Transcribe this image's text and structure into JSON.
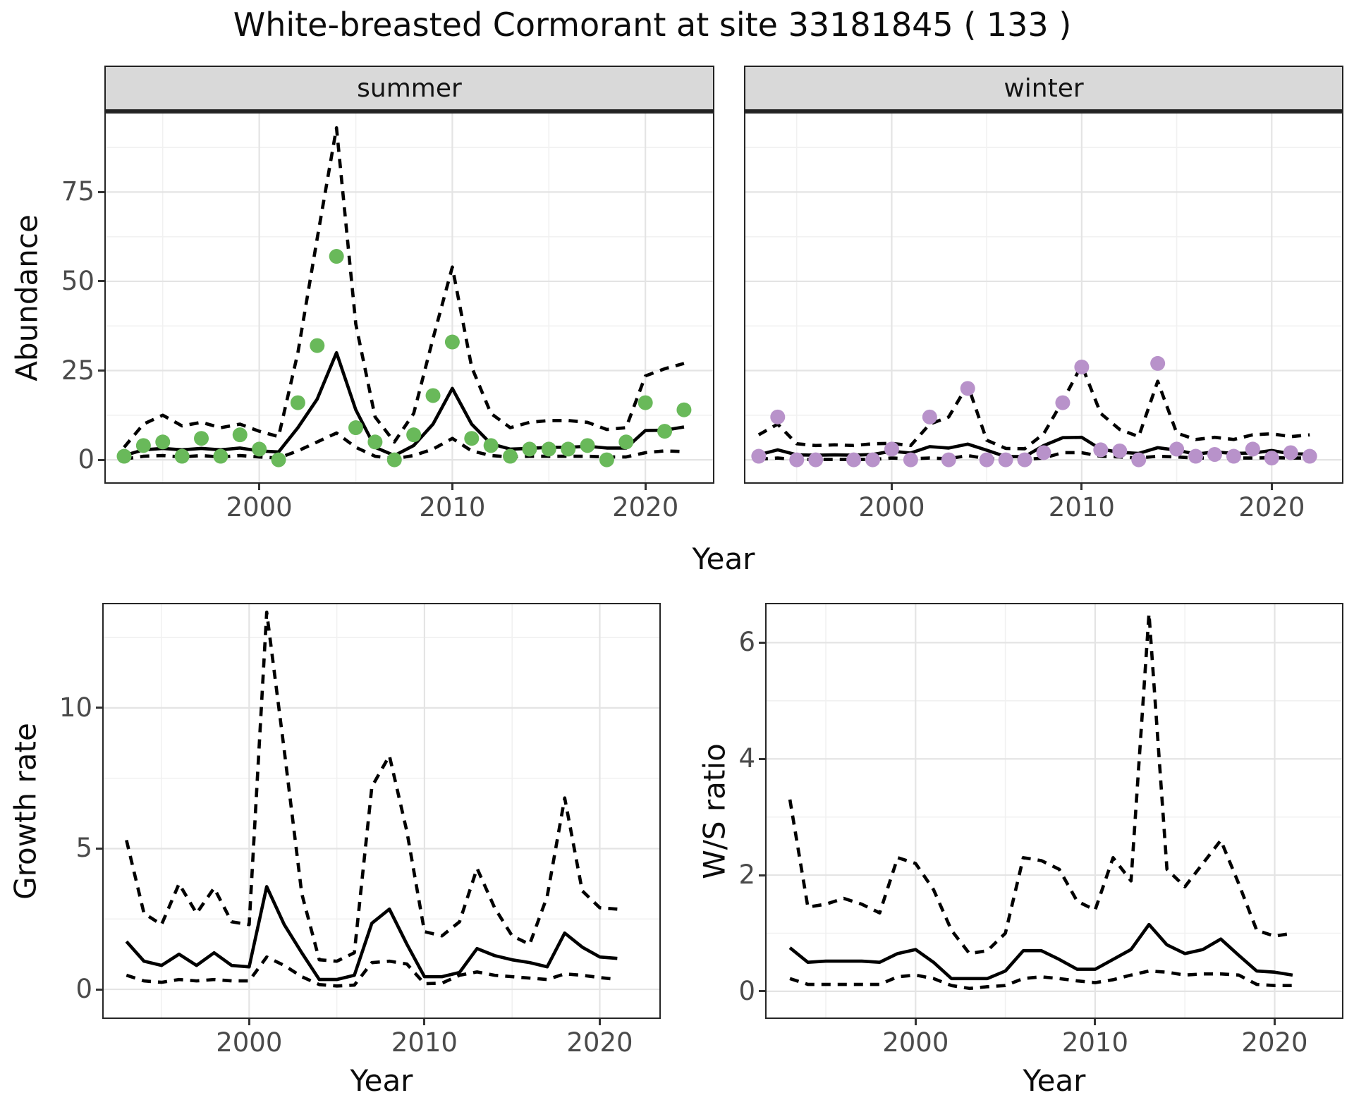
{
  "title": "White-breasted Cormorant at site 33181845 ( 133 )",
  "facets": [
    "summer",
    "winter"
  ],
  "labels": {
    "y_abundance": "Abundance",
    "y_growth": "Growth rate",
    "y_ws": "W/S ratio",
    "x_year_top": "Year",
    "x_year_growth": "Year",
    "x_year_ws": "Year"
  },
  "colors": {
    "summer_point": "#69b95a",
    "winter_point": "#b892ca",
    "line": "#000000",
    "grid_major": "#e4e4e4",
    "grid_minor": "#f1f1f1",
    "strip_bg": "#d9d9d9",
    "panel_border": "#262626",
    "tick_text": "#4a4a4a"
  },
  "chart_data": [
    {
      "id": "summer",
      "type": "line",
      "facet": "summer",
      "ylabel": "Abundance",
      "xlabel": "Year",
      "x": [
        1993,
        1994,
        1995,
        1996,
        1997,
        1998,
        1999,
        2000,
        2001,
        2002,
        2003,
        2004,
        2005,
        2006,
        2007,
        2008,
        2009,
        2010,
        2011,
        2012,
        2013,
        2014,
        2015,
        2016,
        2017,
        2018,
        2019,
        2020,
        2021,
        2022
      ],
      "obs": [
        1,
        4,
        5,
        1,
        6,
        1,
        7,
        3,
        0,
        16,
        32,
        57,
        9,
        5,
        0,
        7,
        18,
        33,
        6,
        4,
        1,
        3,
        3,
        3,
        4,
        0,
        5,
        16,
        8,
        14
      ],
      "mean": [
        1.2,
        2.8,
        3.2,
        2.8,
        3.2,
        2.8,
        3.3,
        2.5,
        2.2,
        9,
        17,
        30,
        14,
        3.5,
        1.2,
        4,
        10,
        20,
        10,
        4.5,
        3,
        3.2,
        3.5,
        3.5,
        3.8,
        3.3,
        3.3,
        8.2,
        8.3,
        9.2
      ],
      "upper": [
        3.5,
        10,
        12.5,
        9.5,
        10.5,
        9,
        10,
        8,
        6.5,
        30,
        62,
        93,
        38,
        12,
        5,
        13,
        34,
        54,
        26,
        13,
        9,
        10.5,
        11,
        11,
        10.5,
        8.5,
        9,
        23.5,
        25.5,
        27
      ],
      "lower": [
        0.2,
        1,
        1.2,
        0.8,
        1.2,
        0.8,
        1.2,
        0.8,
        0.5,
        2.5,
        5,
        7.5,
        3.5,
        1,
        0.3,
        1.2,
        3,
        6,
        2.5,
        1.2,
        0.8,
        1,
        1,
        1,
        1,
        0.8,
        0.8,
        2,
        2.5,
        2.3
      ],
      "xticks": [
        2000,
        2010,
        2020
      ],
      "xminor": [
        1995,
        2005,
        2015
      ],
      "yticks": [
        0,
        25,
        50,
        75
      ],
      "yminor": [
        12.5,
        37.5,
        62.5,
        87.5
      ],
      "xlim": [
        1992.05,
        2023.5
      ],
      "ylim": [
        -6.3,
        97
      ],
      "point_color": "#69b95a",
      "show_yticks": true
    },
    {
      "id": "winter",
      "type": "line",
      "facet": "winter",
      "ylabel": "Abundance",
      "xlabel": "Year",
      "x": [
        1993,
        1994,
        1995,
        1996,
        1997,
        1998,
        1999,
        2000,
        2001,
        2002,
        2003,
        2004,
        2005,
        2006,
        2007,
        2008,
        2009,
        2010,
        2011,
        2012,
        2013,
        2014,
        2015,
        2016,
        2017,
        2018,
        2019,
        2020,
        2021,
        2022
      ],
      "obs": [
        1,
        12,
        0,
        0,
        null,
        0,
        0,
        3,
        0,
        12,
        0,
        20,
        0,
        0,
        0,
        2,
        16,
        26,
        2.8,
        2.5,
        0,
        27,
        3,
        1,
        1.5,
        1,
        3,
        0.5,
        2,
        1
      ],
      "mean": [
        1.4,
        2.8,
        1.4,
        1.3,
        1.4,
        1.3,
        1.5,
        2.4,
        1.9,
        3.7,
        3.3,
        4.4,
        2.7,
        0.9,
        0.9,
        4,
        6.2,
        6.3,
        3,
        2.1,
        1.8,
        3.4,
        2.7,
        1.6,
        2.2,
        1.8,
        1.9,
        2.6,
        1.7,
        1.6
      ],
      "upper": [
        7,
        10,
        4.5,
        4,
        4.2,
        4,
        4.5,
        4.6,
        4,
        10,
        12,
        21,
        5.5,
        3.2,
        3.1,
        7.3,
        16.5,
        26.5,
        13,
        8.5,
        6.5,
        22,
        7.5,
        5.7,
        6.3,
        5.7,
        7,
        7.3,
        6.5,
        7
      ],
      "lower": [
        0.2,
        0.5,
        0.1,
        0.1,
        0.1,
        0.1,
        0.1,
        0.5,
        0.3,
        0.5,
        0.3,
        1.2,
        0.3,
        0.1,
        0.1,
        0.5,
        2,
        2,
        1,
        0.8,
        0.5,
        1,
        0.8,
        0.5,
        0.5,
        0.5,
        0.5,
        0.6,
        0.5,
        0.5
      ],
      "xticks": [
        2000,
        2010,
        2020
      ],
      "xminor": [
        1995,
        2005,
        2015
      ],
      "yticks": [
        0,
        25,
        50,
        75
      ],
      "yminor": [
        12.5,
        37.5,
        62.5,
        87.5
      ],
      "xlim": [
        1992.3,
        2023.7
      ],
      "ylim": [
        -6.3,
        97
      ],
      "point_color": "#b892ca",
      "show_yticks": false
    },
    {
      "id": "growth_rate",
      "type": "line",
      "ylabel": "Growth rate",
      "xlabel": "Year",
      "x": [
        1993,
        1994,
        1995,
        1996,
        1997,
        1998,
        1999,
        2000,
        2001,
        2002,
        2003,
        2004,
        2005,
        2006,
        2007,
        2008,
        2009,
        2010,
        2011,
        2012,
        2013,
        2014,
        2015,
        2016,
        2017,
        2018,
        2019,
        2020,
        2021
      ],
      "obs": null,
      "mean": [
        1.7,
        1.0,
        0.85,
        1.25,
        0.85,
        1.3,
        0.85,
        0.8,
        3.65,
        2.3,
        1.3,
        0.35,
        0.35,
        0.5,
        2.35,
        2.85,
        1.6,
        0.45,
        0.45,
        0.6,
        1.45,
        1.2,
        1.05,
        0.95,
        0.8,
        2.0,
        1.5,
        1.15,
        1.1
      ],
      "upper": [
        5.3,
        2.7,
        2.3,
        3.75,
        2.7,
        3.6,
        2.4,
        2.3,
        13.4,
        8.5,
        3.4,
        1.05,
        1.0,
        1.3,
        7.2,
        8.3,
        5.6,
        2.05,
        1.9,
        2.4,
        4.3,
        2.9,
        1.9,
        1.6,
        3.3,
        6.8,
        3.5,
        2.9,
        2.85
      ],
      "lower": [
        0.5,
        0.3,
        0.25,
        0.35,
        0.3,
        0.35,
        0.3,
        0.3,
        1.15,
        0.85,
        0.45,
        0.17,
        0.12,
        0.15,
        0.95,
        1.0,
        0.9,
        0.2,
        0.22,
        0.5,
        0.62,
        0.5,
        0.45,
        0.4,
        0.35,
        0.55,
        0.5,
        0.42,
        0.35
      ],
      "xticks": [
        2000,
        2010,
        2020
      ],
      "xminor": [
        1995,
        2005,
        2015
      ],
      "yticks": [
        0,
        5,
        10
      ],
      "yminor": [
        2.5,
        7.5,
        12.5
      ],
      "xlim": [
        1991.7,
        2023.4
      ],
      "ylim": [
        -1.0,
        13.68
      ],
      "point_color": null,
      "show_yticks": true
    },
    {
      "id": "ws_ratio",
      "type": "line",
      "ylabel": "W/S ratio",
      "xlabel": "Year",
      "x": [
        1993,
        1994,
        1995,
        1996,
        1997,
        1998,
        1999,
        2000,
        2001,
        2002,
        2003,
        2004,
        2005,
        2006,
        2007,
        2008,
        2009,
        2010,
        2011,
        2012,
        2013,
        2014,
        2015,
        2016,
        2017,
        2018,
        2019,
        2020,
        2021
      ],
      "obs": null,
      "mean": [
        0.75,
        0.5,
        0.52,
        0.52,
        0.52,
        0.5,
        0.65,
        0.72,
        0.5,
        0.22,
        0.22,
        0.22,
        0.35,
        0.7,
        0.7,
        0.55,
        0.38,
        0.38,
        0.55,
        0.72,
        1.15,
        0.8,
        0.65,
        0.72,
        0.9,
        0.62,
        0.35,
        0.33,
        0.28
      ],
      "upper": [
        3.3,
        1.45,
        1.5,
        1.6,
        1.5,
        1.35,
        2.3,
        2.2,
        1.75,
        1.05,
        0.65,
        0.7,
        1.0,
        2.3,
        2.25,
        2.1,
        1.55,
        1.4,
        2.3,
        1.9,
        6.5,
        2.1,
        1.8,
        2.2,
        2.6,
        1.85,
        1.05,
        0.95,
        1.0
      ],
      "lower": [
        0.22,
        0.12,
        0.12,
        0.12,
        0.12,
        0.12,
        0.25,
        0.28,
        0.22,
        0.1,
        0.05,
        0.08,
        0.1,
        0.22,
        0.25,
        0.22,
        0.18,
        0.15,
        0.2,
        0.28,
        0.35,
        0.33,
        0.28,
        0.3,
        0.3,
        0.28,
        0.12,
        0.1,
        0.1
      ],
      "xticks": [
        2000,
        2010,
        2020
      ],
      "xminor": [
        1995,
        2005,
        2015
      ],
      "yticks": [
        0,
        2,
        4,
        6
      ],
      "yminor": [
        1,
        3,
        5
      ],
      "xlim": [
        1991.7,
        2023.75
      ],
      "ylim": [
        -0.45,
        6.66
      ],
      "point_color": null,
      "show_yticks": true
    }
  ]
}
